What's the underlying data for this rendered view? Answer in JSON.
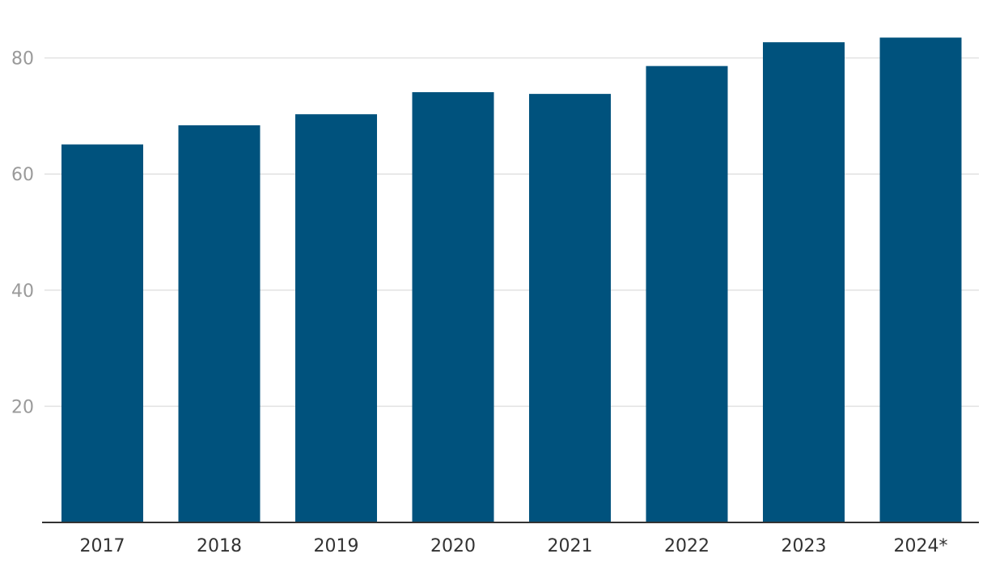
{
  "chart_data": {
    "type": "bar",
    "title": "",
    "xlabel": "",
    "ylabel": "",
    "categories": [
      "2017",
      "2018",
      "2019",
      "2020",
      "2021",
      "2022",
      "2023",
      "2024*"
    ],
    "values": [
      65.1,
      68.4,
      70.3,
      74.1,
      73.8,
      78.6,
      82.7,
      83.5
    ],
    "ylim": [
      0,
      86
    ],
    "yticks": [
      20,
      40,
      60,
      80
    ],
    "grid": true,
    "legend": "none",
    "colors": {
      "bar": "#00527d",
      "grid": "#e2e2e2",
      "axis": "#333333",
      "ytick_text": "#9a9a9a",
      "xtick_text": "#333333"
    }
  }
}
